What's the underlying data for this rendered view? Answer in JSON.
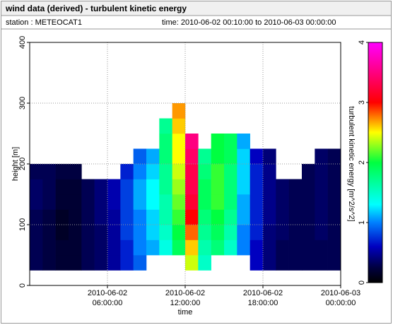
{
  "header": {
    "station": "station : METEOCAT1",
    "time": "time: 2010-06-02 00:10:00 to 2010-06-03 00:00:00"
  },
  "chart_data": {
    "type": "heatmap",
    "title": "wind data (derived) - turbulent kinetic energy",
    "xlabel": "time",
    "ylabel": "height [m]",
    "colorbar_label": "turbulent kinetic energy [m^2/s^2]",
    "xlim": [
      0,
      24
    ],
    "xticks": [
      {
        "value": 6,
        "label": [
          "2010-06-02",
          "06:00:00"
        ]
      },
      {
        "value": 12,
        "label": [
          "2010-06-02",
          "12:00:00"
        ]
      },
      {
        "value": 18,
        "label": [
          "2010-06-02",
          "18:00:00"
        ]
      },
      {
        "value": 24,
        "label": [
          "2010-06-03",
          "00:00:00"
        ]
      }
    ],
    "ylim": [
      0,
      400
    ],
    "yticks": [
      0,
      100,
      200,
      300,
      400
    ],
    "clim": [
      0,
      4
    ],
    "cticks": [
      0,
      1,
      2,
      3,
      4
    ],
    "colorscale": [
      [
        0,
        "#000000"
      ],
      [
        0.25,
        "#000040"
      ],
      [
        0.6,
        "#0000c0"
      ],
      [
        1.0,
        "#0080ff"
      ],
      [
        1.3,
        "#00ffff"
      ],
      [
        2.0,
        "#00ff40"
      ],
      [
        2.5,
        "#ffff00"
      ],
      [
        3.0,
        "#ff0000"
      ],
      [
        4.0,
        "#ff00ff"
      ]
    ],
    "grid": true,
    "x_edges": [
      0,
      1,
      2,
      3,
      4,
      5,
      6,
      7,
      8,
      9,
      10,
      11,
      12,
      13,
      14,
      15,
      16,
      17,
      18,
      19,
      20,
      21,
      22,
      23,
      24
    ],
    "y_edges": [
      25,
      50,
      75,
      100,
      125,
      150,
      175,
      200,
      225,
      250,
      275,
      300
    ],
    "z": [
      [
        0.3,
        0.25,
        0.2,
        0.2,
        0.3,
        0.35,
        0.5,
        0.7,
        0.9,
        null,
        null,
        null,
        2.4,
        1.5,
        null,
        null,
        null,
        0.6,
        0.4,
        0.3,
        0.3,
        0.3,
        0.3,
        0.3
      ],
      [
        0.3,
        0.25,
        0.2,
        0.2,
        0.3,
        0.35,
        0.5,
        0.7,
        1.0,
        1.1,
        1.4,
        1.9,
        2.6,
        1.6,
        1.8,
        1.5,
        1.0,
        0.6,
        0.4,
        0.3,
        0.3,
        0.3,
        0.3,
        0.3
      ],
      [
        0.3,
        0.25,
        0.15,
        0.2,
        0.3,
        0.35,
        0.5,
        0.8,
        1.0,
        1.2,
        1.5,
        2.0,
        2.8,
        1.7,
        1.9,
        1.6,
        1.0,
        0.7,
        0.4,
        0.35,
        0.3,
        0.3,
        0.35,
        0.3
      ],
      [
        0.3,
        0.25,
        0.15,
        0.2,
        0.3,
        0.4,
        0.5,
        0.8,
        1.0,
        1.2,
        1.6,
        2.1,
        3.0,
        1.8,
        2.0,
        1.7,
        1.1,
        0.7,
        0.45,
        0.35,
        0.3,
        0.3,
        0.35,
        0.3
      ],
      [
        0.35,
        0.3,
        0.2,
        0.2,
        0.3,
        0.4,
        0.55,
        0.8,
        1.1,
        1.3,
        1.6,
        2.2,
        3.2,
        1.9,
        2.1,
        1.8,
        1.1,
        0.7,
        0.45,
        0.35,
        0.3,
        0.3,
        0.35,
        0.3
      ],
      [
        0.35,
        0.3,
        0.2,
        0.2,
        0.3,
        0.4,
        0.55,
        0.8,
        1.1,
        1.3,
        1.7,
        2.3,
        3.3,
        1.9,
        2.1,
        1.8,
        1.2,
        0.7,
        0.45,
        0.35,
        0.3,
        0.3,
        0.35,
        0.3
      ],
      [
        0.3,
        0.3,
        0.25,
        0.25,
        null,
        null,
        null,
        0.7,
        1.0,
        1.2,
        1.7,
        2.4,
        3.3,
        1.8,
        2.1,
        1.8,
        1.2,
        0.7,
        0.45,
        null,
        null,
        0.3,
        0.35,
        0.3
      ],
      [
        null,
        null,
        null,
        null,
        null,
        null,
        null,
        null,
        0.9,
        1.1,
        1.8,
        2.5,
        3.4,
        1.7,
        2.0,
        1.9,
        1.2,
        0.6,
        0.4,
        null,
        null,
        null,
        0.35,
        0.3
      ],
      [
        null,
        null,
        null,
        null,
        null,
        null,
        null,
        null,
        null,
        null,
        1.8,
        2.5,
        3.5,
        null,
        2.0,
        1.9,
        1.1,
        null,
        null,
        null,
        null,
        null,
        null,
        null
      ],
      [
        null,
        null,
        null,
        null,
        null,
        null,
        null,
        null,
        null,
        null,
        1.7,
        2.6,
        null,
        null,
        null,
        null,
        null,
        null,
        null,
        null,
        null,
        null,
        null,
        null
      ],
      [
        null,
        null,
        null,
        null,
        null,
        null,
        null,
        null,
        null,
        null,
        null,
        2.7,
        null,
        null,
        null,
        null,
        null,
        null,
        null,
        null,
        null,
        null,
        null,
        null
      ]
    ]
  }
}
